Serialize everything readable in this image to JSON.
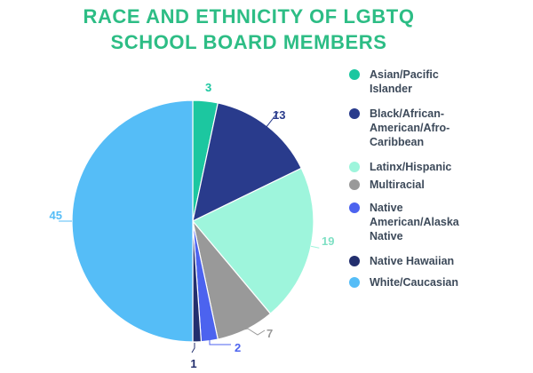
{
  "chart_data": {
    "type": "pie",
    "title_lines": [
      "RACE AND ETHNICITY OF LGBTQ",
      "SCHOOL BOARD MEMBERS"
    ],
    "start_angle_deg": 0,
    "direction": "clockwise",
    "legend_position": "right",
    "slices": [
      {
        "label": "Asian/Pacific Islander",
        "legend_lines": [
          "Asian/Pacific",
          "Islander"
        ],
        "value": 3,
        "value_label": "3",
        "color": "#1cc7a0"
      },
      {
        "label": "Black/African-American/Afro-Caribbean",
        "legend_lines": [
          "Black/African-",
          "American/Afro-",
          "Caribbean"
        ],
        "value": 13,
        "value_label": "13",
        "color": "#293b8c"
      },
      {
        "label": "Latinx/Hispanic",
        "legend_lines": [
          "Latinx/Hispanic"
        ],
        "value": 19,
        "value_label": "19",
        "color": "#9ef5dc"
      },
      {
        "label": "Multiracial",
        "legend_lines": [
          "Multiracial"
        ],
        "value": 7,
        "value_label": "7",
        "color": "#999999"
      },
      {
        "label": "Native American/Alaska Native",
        "legend_lines": [
          "Native",
          "American/Alaska",
          "Native"
        ],
        "value": 2,
        "value_label": "2",
        "color": "#4c63ef"
      },
      {
        "label": "Native Hawaiian",
        "legend_lines": [
          "Native Hawaiian"
        ],
        "value": 1,
        "value_label": "1",
        "color": "#232f6e"
      },
      {
        "label": "White/Caucasian",
        "legend_lines": [
          "White/Caucasian"
        ],
        "value": 45,
        "value_label": "45",
        "color": "#55bdf7"
      }
    ]
  }
}
